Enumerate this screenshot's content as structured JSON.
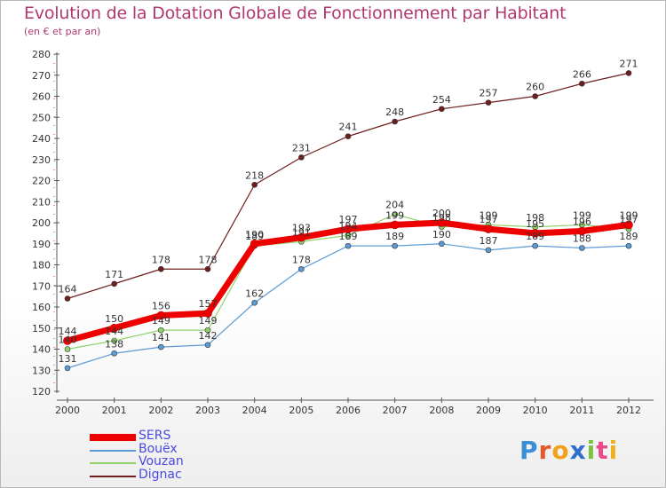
{
  "page": {
    "title": "Evolution de la Dotation Globale de Fonctionnement par Habitant",
    "subtitle": "(en € et par an)"
  },
  "logo": {
    "text": "Proxiti",
    "letters": [
      "P",
      "r",
      "o",
      "x",
      "i",
      "t",
      "i"
    ],
    "colors": [
      "#3a8fd6",
      "#e05a2b",
      "#f2a21a",
      "#2f6fd0",
      "#7cc243",
      "#e84a8c",
      "#f0b01e"
    ]
  },
  "colors": {
    "title": "#b0386e",
    "legend_text": "#4a4ae0",
    "axis": "#555555",
    "grid_red": "#e03030"
  },
  "chart_data": {
    "type": "line",
    "title": "Evolution de la Dotation Globale de Fonctionnement par Habitant",
    "subtitle": "(en € et par an)",
    "xlabel": "",
    "ylabel": "",
    "x": [
      "2000",
      "2001",
      "2002",
      "2003",
      "2004",
      "2005",
      "2006",
      "2007",
      "2008",
      "2009",
      "2010",
      "2011",
      "2012"
    ],
    "ylim": [
      120,
      280
    ],
    "yticks": [
      120,
      130,
      140,
      150,
      160,
      170,
      180,
      190,
      200,
      210,
      220,
      230,
      240,
      250,
      260,
      270,
      280
    ],
    "legend_position": "bottom-left",
    "series": [
      {
        "name": "Dignac",
        "color": "#6e1e1e",
        "stroke": 1.2,
        "values": [
          164,
          171,
          178,
          178,
          218,
          231,
          241,
          248,
          254,
          257,
          260,
          266,
          271
        ],
        "labels": [
          "164",
          "171",
          "178",
          "178",
          "218",
          "231",
          "241",
          "248",
          "254",
          "257",
          "260",
          "266",
          "271"
        ]
      },
      {
        "name": "Bouëx",
        "color": "#5b9bd5",
        "stroke": 1.2,
        "values": [
          131,
          138,
          141,
          142,
          162,
          178,
          189,
          189,
          190,
          187,
          189,
          188,
          189
        ],
        "labels": [
          "131",
          "138",
          "141",
          "142",
          "162",
          "178",
          "189",
          "189",
          "190",
          "187",
          "189",
          "188",
          "189"
        ]
      },
      {
        "name": "Vouzan",
        "color": "#8fd36b",
        "stroke": 1.2,
        "values": [
          140,
          144,
          149,
          149,
          189,
          191,
          194,
          204,
          198,
          199,
          198,
          199,
          197
        ],
        "labels": [
          "140",
          "144",
          "149",
          "149",
          "189",
          "191",
          "194",
          "204",
          "198",
          "199",
          "198",
          "199",
          "197"
        ]
      },
      {
        "name": "SERS",
        "color": "#ee0000",
        "stroke": 7,
        "values": [
          144,
          150,
          156,
          157,
          190,
          193,
          197,
          199,
          200,
          197,
          195,
          196,
          199
        ],
        "labels": [
          "144",
          "150",
          "156",
          "157",
          "190",
          "193",
          "197",
          "199",
          "200",
          "197",
          "195",
          "196",
          "199"
        ]
      }
    ],
    "legend_order": [
      "SERS",
      "Bouëx",
      "Vouzan",
      "Dignac"
    ]
  }
}
